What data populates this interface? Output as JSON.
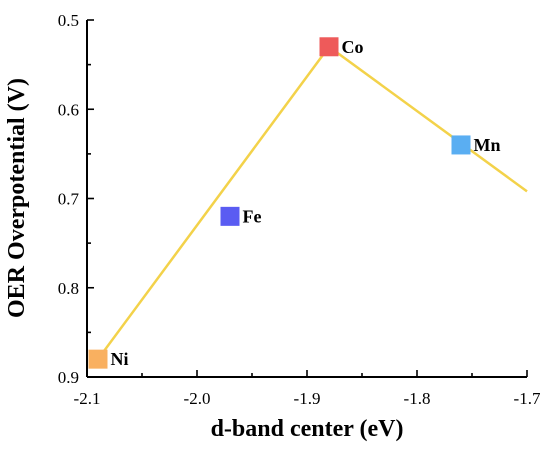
{
  "chart_data": {
    "type": "scatter",
    "title": "",
    "xlabel": "d-band center (eV)",
    "ylabel": "OER Overpotential (V)",
    "xlim": [
      -2.1,
      -1.7
    ],
    "ylim": [
      0.5,
      0.9
    ],
    "y_inverted": true,
    "x_ticks": [
      -2.1,
      -2.0,
      -1.9,
      -1.8,
      -1.7
    ],
    "x_tick_labels": [
      "-2.1",
      "-2.0",
      "-1.9",
      "-1.8",
      "-1.7"
    ],
    "y_ticks": [
      0.5,
      0.6,
      0.7,
      0.8,
      0.9
    ],
    "y_tick_labels": [
      "0.5",
      "0.6",
      "0.7",
      "0.8",
      "0.9"
    ],
    "grid": false,
    "points": [
      {
        "label": "Ni",
        "x": -2.09,
        "y": 0.88,
        "color": "#f9b060"
      },
      {
        "label": "Fe",
        "x": -1.97,
        "y": 0.72,
        "color": "#5a5cf2"
      },
      {
        "label": "Co",
        "x": -1.88,
        "y": 0.53,
        "color": "#ee5a5a"
      },
      {
        "label": "Mn",
        "x": -1.76,
        "y": 0.64,
        "color": "#5aaef2"
      }
    ],
    "volcano_line": {
      "color": "#f3d24a",
      "points": [
        {
          "x": -2.09,
          "y": 0.88
        },
        {
          "x": -1.88,
          "y": 0.53
        },
        {
          "x": -1.7,
          "y": 0.692
        }
      ]
    }
  }
}
